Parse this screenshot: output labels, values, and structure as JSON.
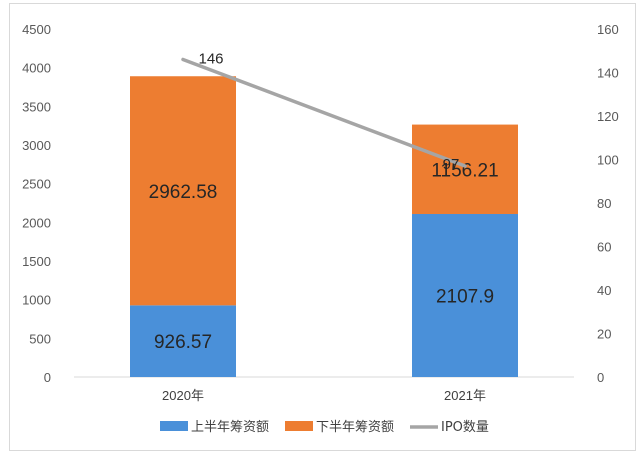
{
  "chart_data": {
    "type": "bar",
    "stacked": true,
    "categories": [
      "2020年",
      "2021年"
    ],
    "series": [
      {
        "name": "上半年筹资额",
        "kind": "bar",
        "axis": "left",
        "values": [
          926.57,
          2107.9
        ],
        "labels": [
          "926.57",
          "2107.9"
        ],
        "color": "#4a90d9"
      },
      {
        "name": "下半年筹资额",
        "kind": "bar",
        "axis": "left",
        "values": [
          2962.58,
          1156.21
        ],
        "labels": [
          "2962.58",
          "1156.21"
        ],
        "color": "#ed7d31"
      },
      {
        "name": "IPO数量",
        "kind": "line",
        "axis": "right",
        "values": [
          146,
          97
        ],
        "labels": [
          "146",
          "97"
        ],
        "color": "#a5a5a5"
      }
    ],
    "ylim": [
      0,
      4500
    ],
    "y_ticks": [
      "0",
      "500",
      "1000",
      "1500",
      "2000",
      "2500",
      "3000",
      "3500",
      "4000",
      "4500"
    ],
    "y2lim": [
      0,
      160
    ],
    "y2_ticks": [
      "0",
      "20",
      "40",
      "60",
      "80",
      "100",
      "120",
      "140",
      "160"
    ],
    "grid": false,
    "legend": "bottom"
  }
}
